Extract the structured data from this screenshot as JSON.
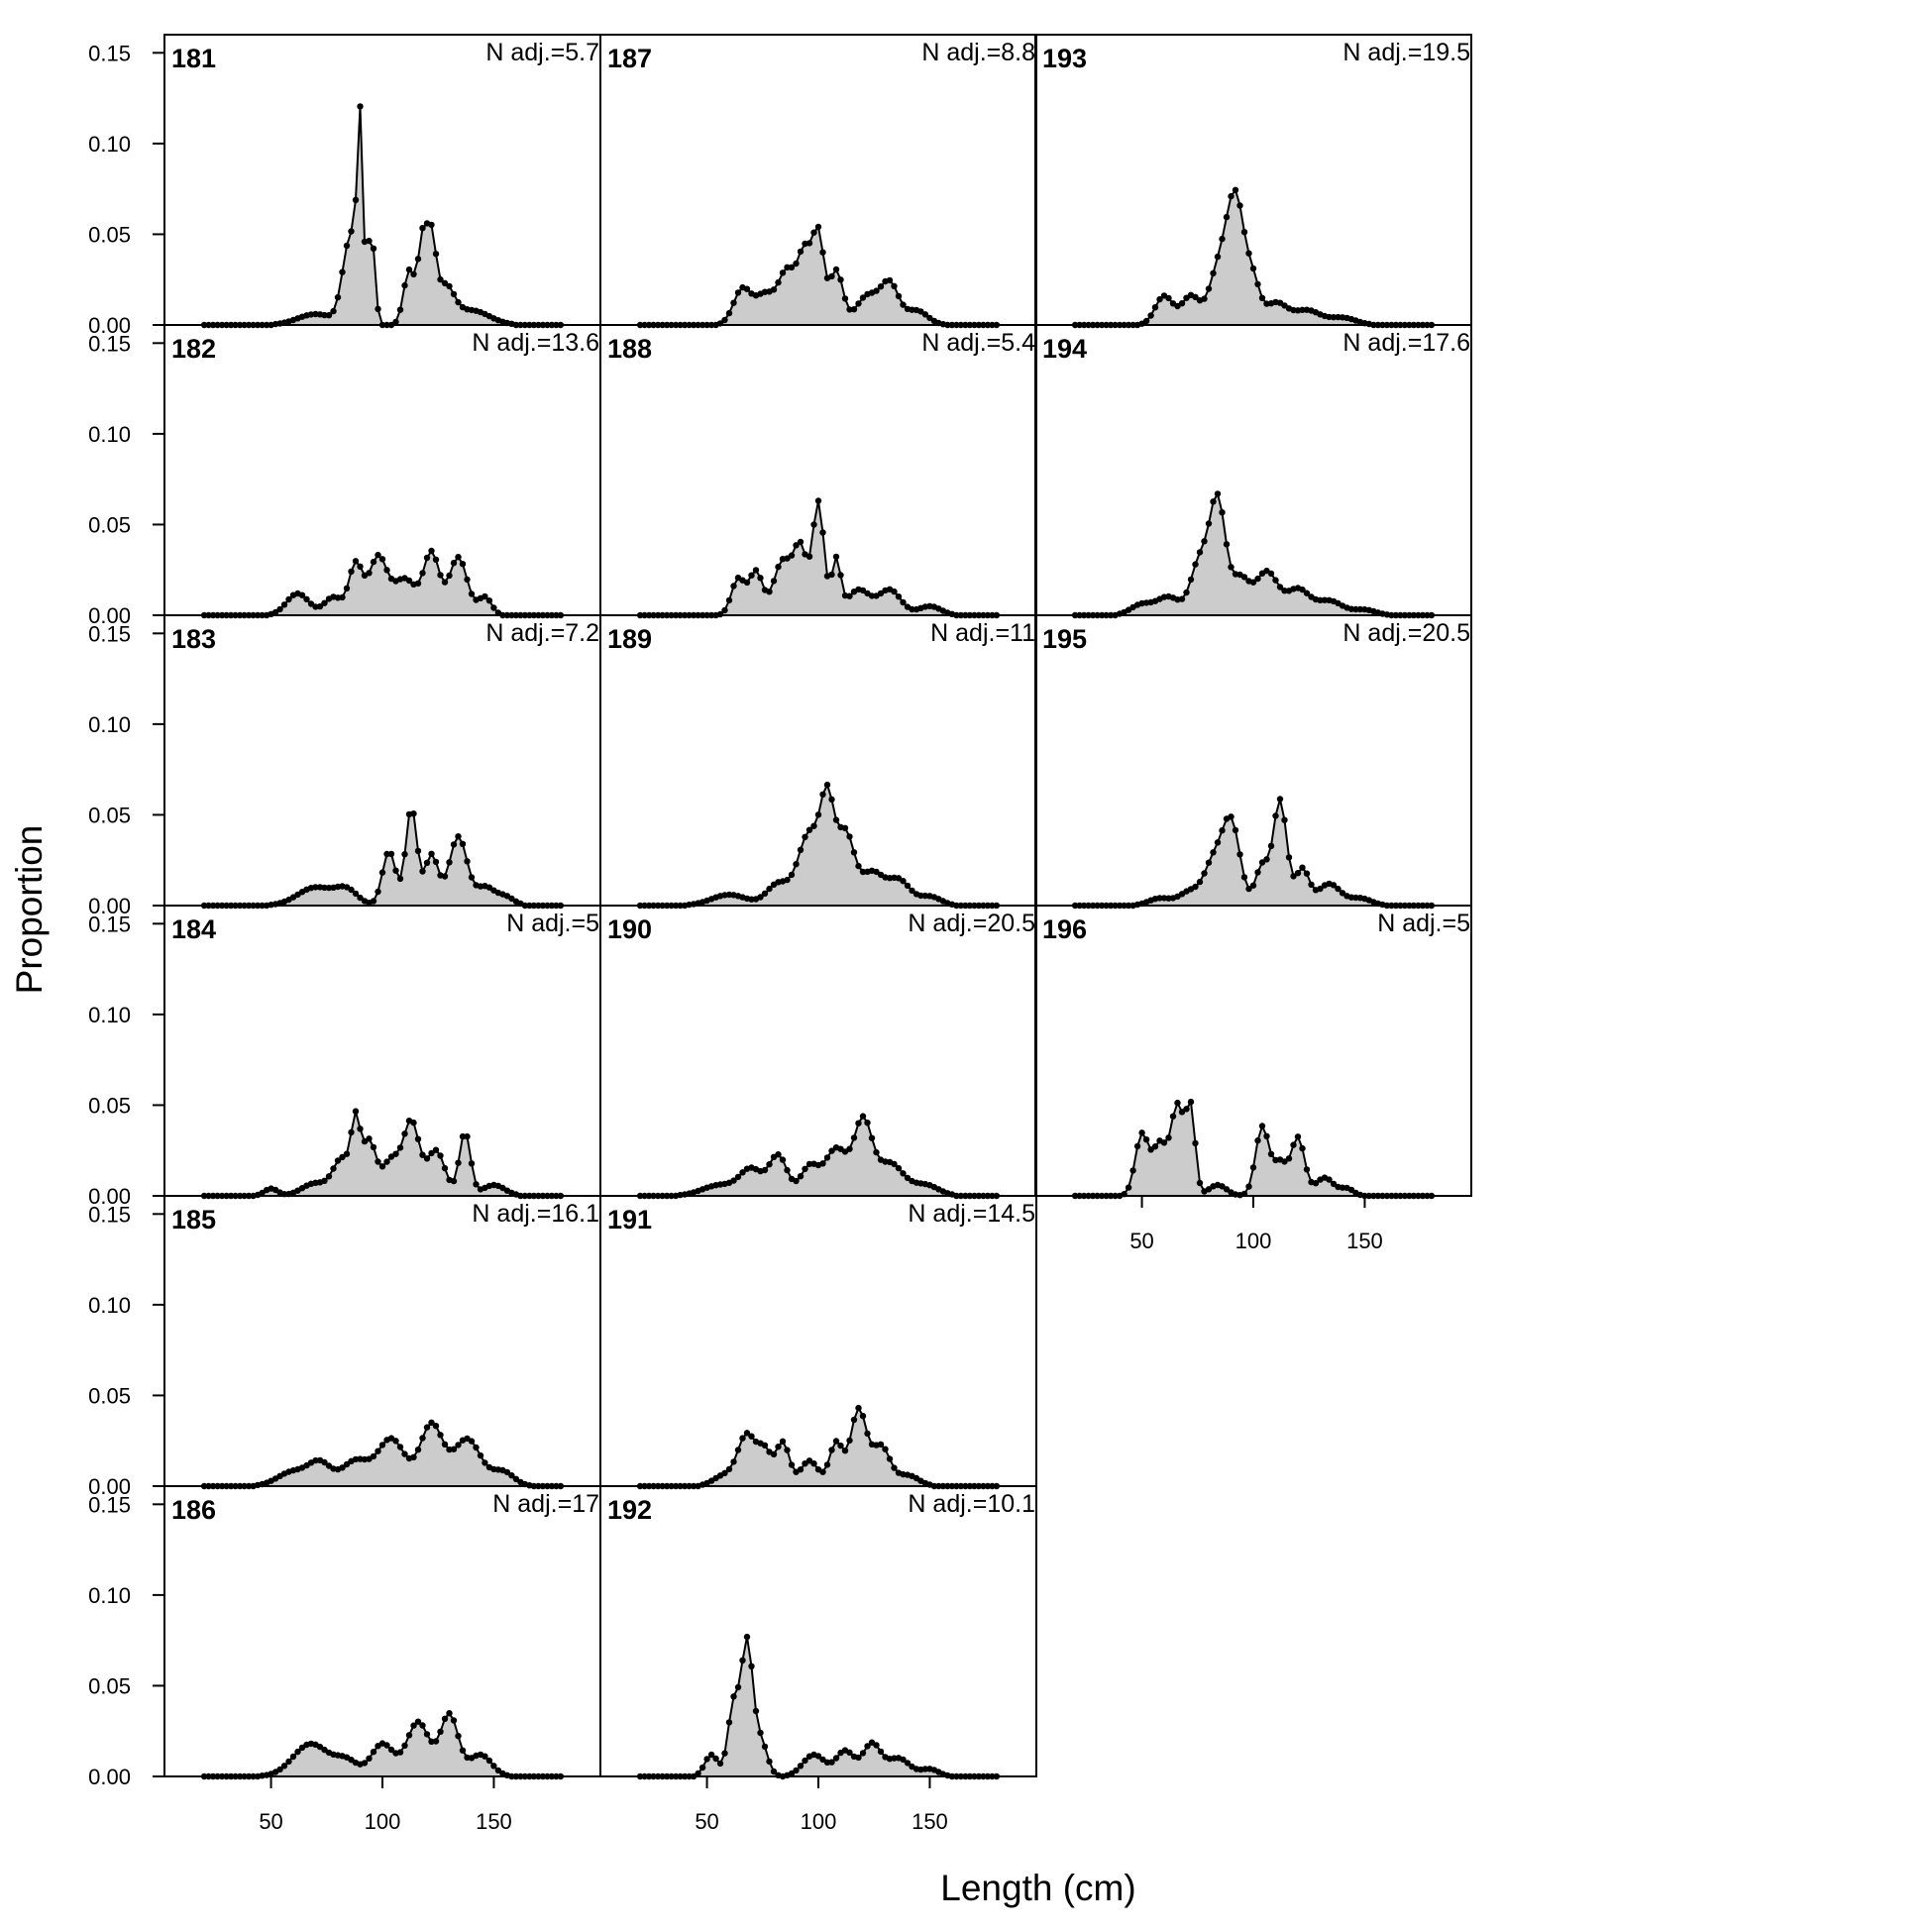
{
  "chart_data": {
    "type": "area",
    "xlabel": "Length (cm)",
    "ylabel": "Proportion",
    "xlim": [
      10,
      190
    ],
    "ylim": [
      0,
      0.16
    ],
    "x_ticks": [
      50,
      100,
      150
    ],
    "y_ticks": [
      "0.00",
      "0.05",
      "0.10",
      "0.15"
    ],
    "grid": false,
    "legend": "none",
    "colors": {
      "fill": "#cccccc",
      "line": "#000000",
      "point": "#000000"
    },
    "bin_start": 20,
    "bin_width": 2,
    "panels": [
      {
        "id": "181",
        "n_adj": "N adj.=5.7",
        "peaks": [
          [
            90,
            0.088,
            1.2
          ],
          [
            88,
            0.035,
            3
          ],
          [
            95,
            0.05,
            1.6
          ],
          [
            84,
            0.028,
            3
          ],
          [
            118,
            0.045,
            2
          ],
          [
            122,
            0.042,
            2
          ],
          [
            112,
            0.03,
            2.5
          ],
          [
            128,
            0.02,
            4
          ],
          [
            70,
            0.006,
            8
          ],
          [
            140,
            0.008,
            8
          ]
        ]
      },
      {
        "id": "182",
        "n_adj": "N adj.=13.6",
        "peaks": [
          [
            62,
            0.012,
            5
          ],
          [
            78,
            0.01,
            4
          ],
          [
            88,
            0.028,
            3
          ],
          [
            98,
            0.032,
            4
          ],
          [
            110,
            0.02,
            5
          ],
          [
            122,
            0.034,
            3.5
          ],
          [
            134,
            0.032,
            4
          ],
          [
            146,
            0.01,
            3
          ]
        ]
      },
      {
        "id": "183",
        "n_adj": "N adj.=7.2",
        "peaks": [
          [
            70,
            0.01,
            8
          ],
          [
            84,
            0.008,
            5
          ],
          [
            103,
            0.03,
            3
          ],
          [
            113,
            0.054,
            2.5
          ],
          [
            122,
            0.028,
            3
          ],
          [
            134,
            0.038,
            4
          ],
          [
            146,
            0.01,
            4
          ],
          [
            155,
            0.005,
            4
          ]
        ]
      },
      {
        "id": "184",
        "n_adj": "N adj.=5",
        "peaks": [
          [
            50,
            0.004,
            3
          ],
          [
            70,
            0.007,
            6
          ],
          [
            82,
            0.02,
            4
          ],
          [
            88,
            0.036,
            2
          ],
          [
            94,
            0.03,
            3
          ],
          [
            104,
            0.02,
            4
          ],
          [
            113,
            0.04,
            3.5
          ],
          [
            124,
            0.025,
            4
          ],
          [
            137,
            0.035,
            2.5
          ],
          [
            150,
            0.006,
            5
          ]
        ]
      },
      {
        "id": "185",
        "n_adj": "N adj.=16.1",
        "peaks": [
          [
            60,
            0.008,
            7
          ],
          [
            72,
            0.012,
            5
          ],
          [
            88,
            0.014,
            6
          ],
          [
            104,
            0.026,
            6
          ],
          [
            122,
            0.034,
            5
          ],
          [
            138,
            0.026,
            6
          ],
          [
            154,
            0.008,
            5
          ]
        ]
      },
      {
        "id": "186",
        "n_adj": "N adj.=17",
        "peaks": [
          [
            68,
            0.018,
            8
          ],
          [
            84,
            0.008,
            5
          ],
          [
            100,
            0.018,
            5
          ],
          [
            116,
            0.03,
            5
          ],
          [
            130,
            0.034,
            4
          ],
          [
            144,
            0.012,
            5
          ]
        ]
      },
      {
        "id": "187",
        "n_adj": "N adj.=8.8",
        "peaks": [
          [
            66,
            0.02,
            4
          ],
          [
            76,
            0.016,
            4
          ],
          [
            86,
            0.03,
            4
          ],
          [
            94,
            0.038,
            3
          ],
          [
            100,
            0.048,
            2.5
          ],
          [
            108,
            0.03,
            3
          ],
          [
            122,
            0.016,
            5
          ],
          [
            132,
            0.022,
            4
          ],
          [
            144,
            0.008,
            5
          ]
        ]
      },
      {
        "id": "188",
        "n_adj": "N adj.=5.4",
        "peaks": [
          [
            64,
            0.02,
            3
          ],
          [
            72,
            0.024,
            3
          ],
          [
            84,
            0.03,
            4
          ],
          [
            92,
            0.036,
            3
          ],
          [
            100,
            0.062,
            2.5
          ],
          [
            108,
            0.03,
            2
          ],
          [
            118,
            0.014,
            5
          ],
          [
            132,
            0.014,
            5
          ],
          [
            150,
            0.005,
            5
          ]
        ]
      },
      {
        "id": "189",
        "n_adj": "N adj.=11",
        "peaks": [
          [
            60,
            0.006,
            8
          ],
          [
            82,
            0.012,
            5
          ],
          [
            96,
            0.04,
            5
          ],
          [
            104,
            0.05,
            3
          ],
          [
            112,
            0.04,
            4
          ],
          [
            124,
            0.018,
            5
          ],
          [
            136,
            0.014,
            5
          ],
          [
            150,
            0.005,
            5
          ]
        ]
      },
      {
        "id": "190",
        "n_adj": "N adj.=20.5",
        "peaks": [
          [
            56,
            0.006,
            8
          ],
          [
            70,
            0.014,
            5
          ],
          [
            82,
            0.022,
            4
          ],
          [
            96,
            0.016,
            4
          ],
          [
            108,
            0.026,
            5
          ],
          [
            120,
            0.04,
            4
          ],
          [
            132,
            0.018,
            6
          ],
          [
            148,
            0.006,
            6
          ]
        ]
      },
      {
        "id": "191",
        "n_adj": "N adj.=14.5",
        "peaks": [
          [
            58,
            0.006,
            5
          ],
          [
            68,
            0.028,
            4
          ],
          [
            76,
            0.018,
            3
          ],
          [
            84,
            0.024,
            3
          ],
          [
            96,
            0.014,
            4
          ],
          [
            108,
            0.024,
            3
          ],
          [
            118,
            0.042,
            3.5
          ],
          [
            128,
            0.022,
            4
          ],
          [
            140,
            0.006,
            5
          ]
        ]
      },
      {
        "id": "192",
        "n_adj": "N adj.=10.1",
        "peaks": [
          [
            52,
            0.012,
            3
          ],
          [
            62,
            0.04,
            2.5
          ],
          [
            68,
            0.072,
            2.5
          ],
          [
            74,
            0.02,
            3
          ],
          [
            98,
            0.012,
            5
          ],
          [
            112,
            0.014,
            4
          ],
          [
            124,
            0.018,
            4
          ],
          [
            136,
            0.01,
            5
          ],
          [
            150,
            0.004,
            4
          ]
        ]
      },
      {
        "id": "193",
        "n_adj": "N adj.=19.5",
        "peaks": [
          [
            60,
            0.016,
            4
          ],
          [
            72,
            0.016,
            4
          ],
          [
            84,
            0.028,
            4
          ],
          [
            92,
            0.07,
            4
          ],
          [
            100,
            0.02,
            3
          ],
          [
            110,
            0.012,
            5
          ],
          [
            124,
            0.008,
            6
          ],
          [
            140,
            0.004,
            6
          ]
        ]
      },
      {
        "id": "194",
        "n_adj": "N adj.=17.6",
        "peaks": [
          [
            50,
            0.006,
            5
          ],
          [
            62,
            0.01,
            5
          ],
          [
            76,
            0.03,
            4
          ],
          [
            84,
            0.062,
            3.5
          ],
          [
            94,
            0.02,
            4
          ],
          [
            106,
            0.024,
            5
          ],
          [
            120,
            0.014,
            5
          ],
          [
            134,
            0.008,
            6
          ],
          [
            150,
            0.003,
            5
          ]
        ]
      },
      {
        "id": "195",
        "n_adj": "N adj.=20.5",
        "peaks": [
          [
            58,
            0.004,
            5
          ],
          [
            72,
            0.008,
            5
          ],
          [
            82,
            0.022,
            4
          ],
          [
            90,
            0.046,
            4
          ],
          [
            104,
            0.022,
            3
          ],
          [
            112,
            0.058,
            3
          ],
          [
            122,
            0.02,
            3
          ],
          [
            134,
            0.012,
            5
          ],
          [
            148,
            0.004,
            5
          ]
        ]
      },
      {
        "id": "196",
        "n_adj": "N adj.=5",
        "peaks": [
          [
            50,
            0.034,
            3
          ],
          [
            58,
            0.028,
            3
          ],
          [
            66,
            0.05,
            3
          ],
          [
            72,
            0.045,
            2
          ],
          [
            84,
            0.006,
            4
          ],
          [
            104,
            0.038,
            3
          ],
          [
            112,
            0.018,
            3
          ],
          [
            120,
            0.032,
            3
          ],
          [
            132,
            0.01,
            4
          ],
          [
            142,
            0.004,
            3
          ]
        ]
      }
    ]
  }
}
